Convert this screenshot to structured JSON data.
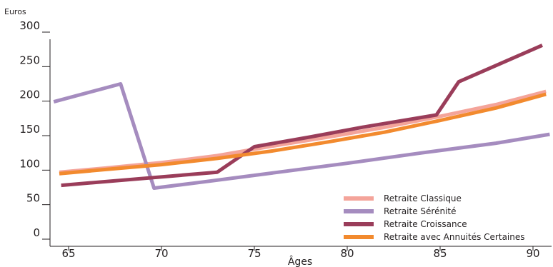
{
  "chart_data": {
    "type": "line",
    "ylabel": "Euros",
    "xlabel": "Âges",
    "xlim": [
      64,
      91
    ],
    "ylim": [
      0,
      300
    ],
    "x_ticks": [
      "65",
      "70",
      "75",
      "80",
      "85",
      "90"
    ],
    "y_ticks": [
      "0",
      "50",
      "100",
      "150",
      "200",
      "250",
      "300"
    ],
    "grid": false,
    "legend_position": "bottom-right",
    "series": [
      {
        "name": "Retraite Classique",
        "color": "#f4a49a",
        "points": [
          [
            64.5,
            97
          ],
          [
            67,
            103
          ],
          [
            70,
            111
          ],
          [
            73,
            121
          ],
          [
            76,
            135
          ],
          [
            79,
            148
          ],
          [
            82,
            162
          ],
          [
            85,
            178
          ],
          [
            88,
            195
          ],
          [
            90.7,
            214
          ]
        ]
      },
      {
        "name": "Retraite Sérénité",
        "color": "#a58cbf",
        "points": [
          [
            64.2,
            199
          ],
          [
            67.8,
            225
          ],
          [
            69.6,
            74
          ],
          [
            72,
            82
          ],
          [
            76,
            96
          ],
          [
            80,
            110
          ],
          [
            84,
            125
          ],
          [
            88,
            139
          ],
          [
            90.9,
            152
          ]
        ]
      },
      {
        "name": "Retraite Croissance",
        "color": "#9a3d5a",
        "points": [
          [
            64.6,
            78
          ],
          [
            73,
            97
          ],
          [
            75,
            134
          ],
          [
            78,
            148
          ],
          [
            81,
            163
          ],
          [
            84.8,
            180
          ],
          [
            86,
            228
          ],
          [
            90.5,
            281
          ]
        ]
      },
      {
        "name": "Retraite avec Annuités Certaines",
        "color": "#f28a2e",
        "points": [
          [
            64.5,
            95
          ],
          [
            67,
            101
          ],
          [
            70,
            108
          ],
          [
            73,
            117
          ],
          [
            76,
            128
          ],
          [
            79,
            141
          ],
          [
            82,
            155
          ],
          [
            85,
            172
          ],
          [
            88,
            190
          ],
          [
            90.7,
            210
          ]
        ]
      }
    ]
  }
}
